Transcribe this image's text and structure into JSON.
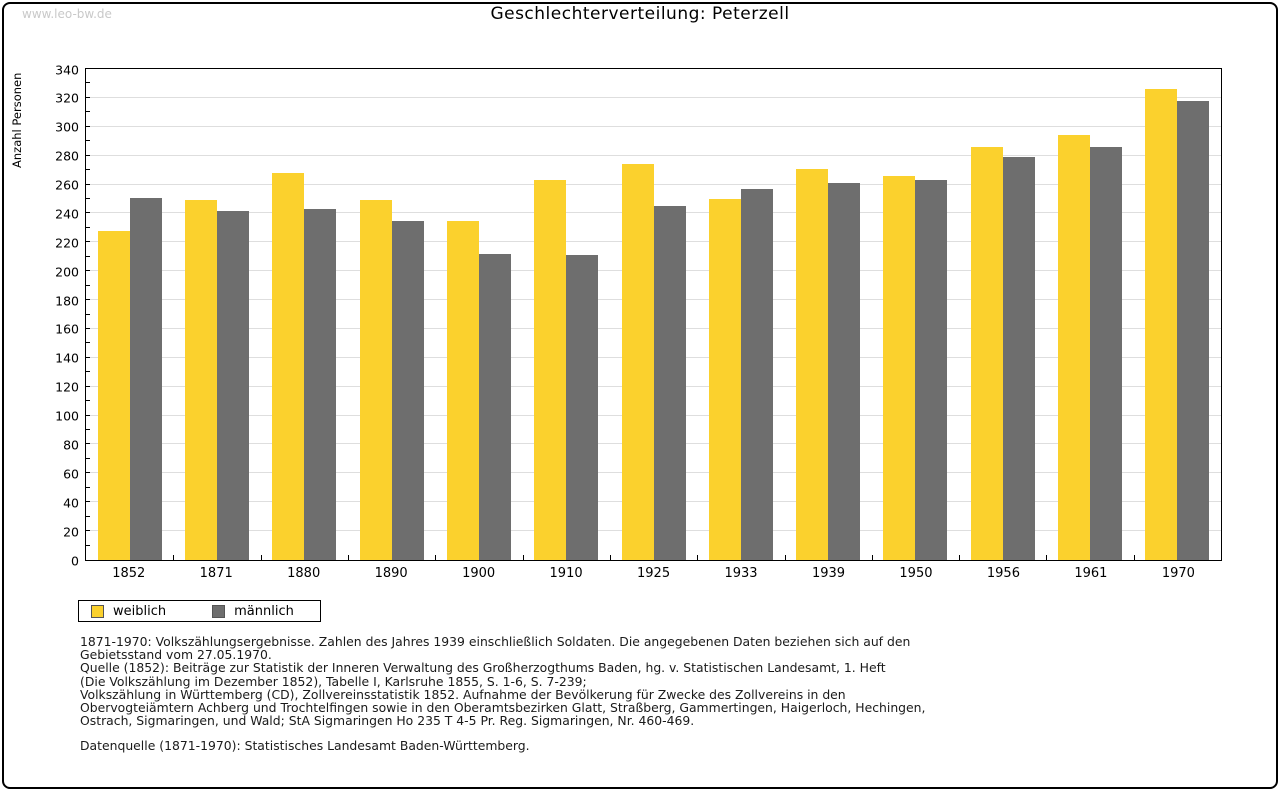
{
  "page": {
    "watermark": "www.leo-bw.de",
    "title": "Geschlechterverteilung: Peterzell"
  },
  "chart_data": {
    "type": "bar",
    "title": "Geschlechterverteilung: Peterzell",
    "xlabel": "",
    "ylabel": "Anzahl Personen",
    "ylim": [
      0,
      340
    ],
    "ytick_step": 20,
    "ytick_minor_step": 10,
    "grid": true,
    "legend_position": "bottom-left",
    "background": "#FFFFFF",
    "grid_color": "#DEDEDE",
    "axis_color": "#000000",
    "categories": [
      "1852",
      "1871",
      "1880",
      "1890",
      "1900",
      "1910",
      "1925",
      "1933",
      "1939",
      "1950",
      "1956",
      "1961",
      "1970"
    ],
    "series": [
      {
        "name": "weiblich",
        "color": "#FBD12D",
        "values": [
          228,
          249,
          268,
          249,
          235,
          263,
          274,
          250,
          271,
          266,
          286,
          294,
          326
        ]
      },
      {
        "name": "männlich",
        "color": "#6E6E6E",
        "values": [
          251,
          242,
          243,
          235,
          212,
          211,
          245,
          257,
          261,
          263,
          279,
          286,
          318
        ]
      }
    ]
  },
  "legend": {
    "items": [
      {
        "label": "weiblich",
        "color": "#FBD12D"
      },
      {
        "label": "männlich",
        "color": "#6E6E6E"
      }
    ]
  },
  "footnotes": {
    "lines": [
      "1871-1970: Volkszählungsergebnisse. Zahlen des Jahres 1939 einschließlich Soldaten. Die angegebenen Daten beziehen sich auf den",
      "Gebietsstand vom 27.05.1970.",
      "Quelle (1852): Beiträge zur Statistik der Inneren Verwaltung des Großherzogthums Baden, hg. v. Statistischen Landesamt, 1. Heft",
      "(Die Volkszählung im Dezember 1852), Tabelle I, Karlsruhe 1855, S. 1-6, S. 7-239;",
      "Volkszählung in Württemberg (CD), Zollvereinsstatistik 1852. Aufnahme der Bevölkerung für Zwecke des Zollvereins in den",
      "Obervogteiämtern Achberg und Trochtelfingen sowie in den Oberamtsbezirken Glatt, Straßberg, Gammertingen, Haigerloch, Hechingen,",
      "Ostrach, Sigmaringen, und Wald; StA Sigmaringen Ho 235 T 4-5 Pr. Reg. Sigmaringen, Nr. 460-469."
    ],
    "datasource": "Datenquelle (1871-1970): Statistisches Landesamt Baden-Württemberg."
  }
}
